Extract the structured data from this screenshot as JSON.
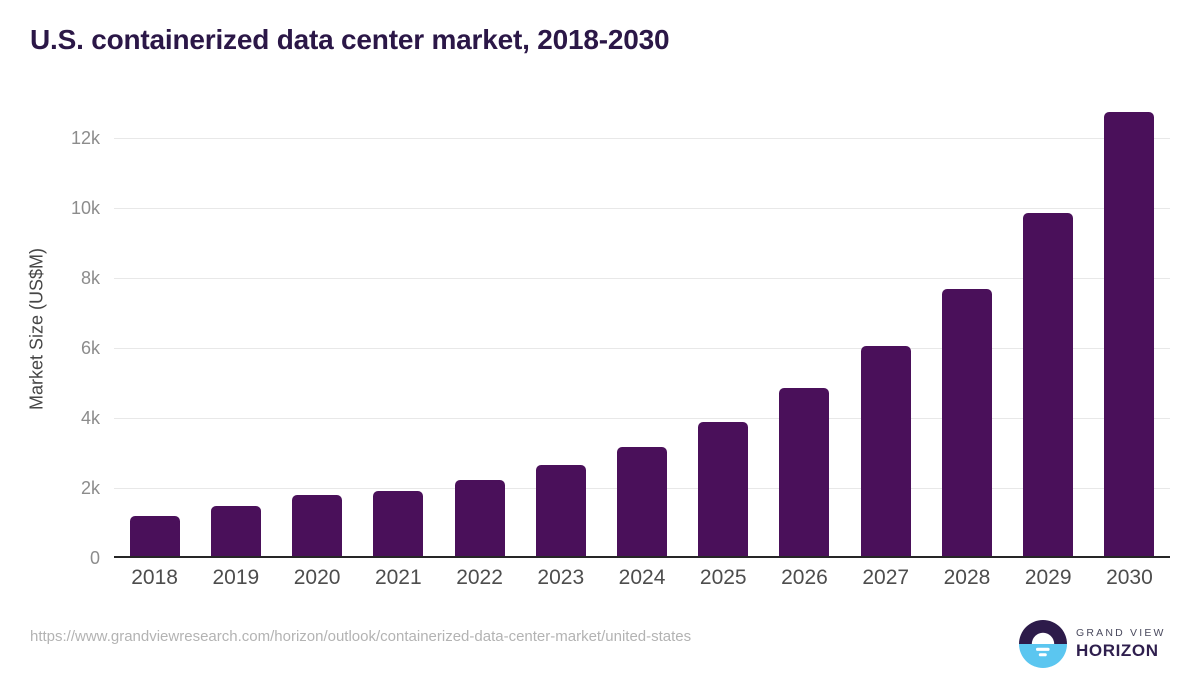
{
  "title": "U.S. containerized data center market, 2018-2030",
  "chart_data": {
    "type": "bar",
    "title": "U.S. containerized data center market, 2018-2030",
    "categories": [
      "2018",
      "2019",
      "2020",
      "2021",
      "2022",
      "2023",
      "2024",
      "2025",
      "2026",
      "2027",
      "2028",
      "2029",
      "2030"
    ],
    "values": [
      1200,
      1490,
      1800,
      1910,
      2230,
      2660,
      3170,
      3890,
      4860,
      6060,
      7690,
      9860,
      12770
    ],
    "xlabel": "",
    "ylabel": "Market Size (US$M)",
    "ylim": [
      0,
      13100
    ],
    "yticks": [
      {
        "label": "0",
        "value": 0
      },
      {
        "label": "2k",
        "value": 2000
      },
      {
        "label": "4k",
        "value": 4000
      },
      {
        "label": "6k",
        "value": 6000
      },
      {
        "label": "8k",
        "value": 8000
      },
      {
        "label": "10k",
        "value": 10000
      },
      {
        "label": "12k",
        "value": 12000
      }
    ],
    "grid": "horizontal",
    "legend": "none",
    "bar_color": "#4a105a"
  },
  "footer": {
    "source_url": "https://www.grandviewresearch.com/horizon/outlook/containerized-data-center-market/united-states",
    "logo": {
      "brand_top": "GRAND VIEW",
      "brand_bottom": "HORIZON"
    }
  },
  "colors": {
    "bar": "#4a105a",
    "title": "#2b1747",
    "gridline": "#e8e8e8",
    "axis_line": "#262626",
    "y_tick": "#8c8c8c",
    "x_tick": "#4d4d4d",
    "axis_title": "#464646",
    "footer_url": "#b3b3b3",
    "logo_purple": "#2d1b4a",
    "logo_blue": "#5bc6f0",
    "brand_top": "#4a4a5e",
    "brand_bottom": "#2f1f4e"
  }
}
